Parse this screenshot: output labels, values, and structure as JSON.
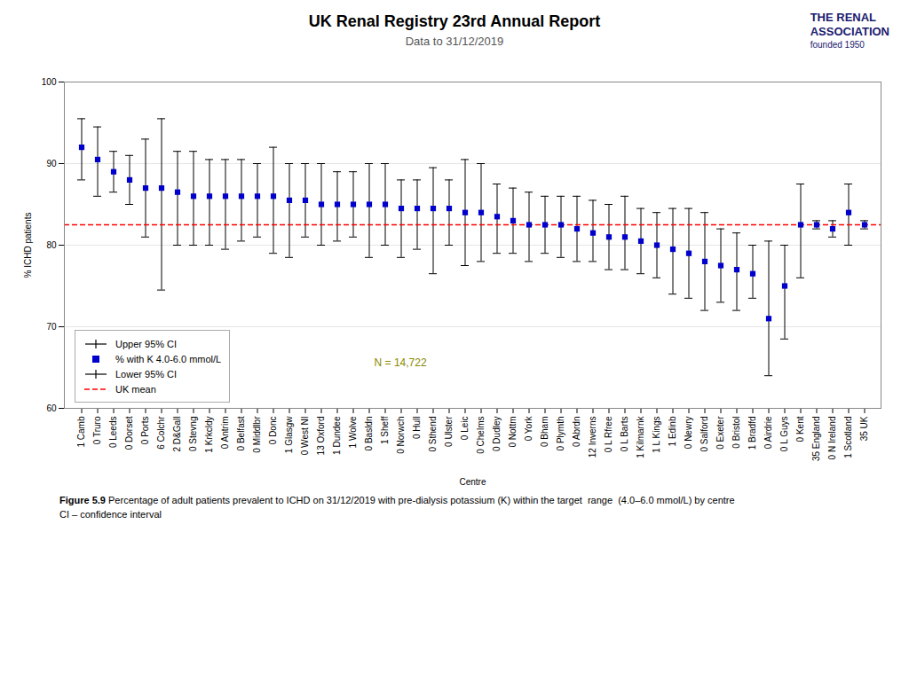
{
  "chart_data": {
    "type": "scatter",
    "title": "UK Renal Registry 23rd Annual Report",
    "subtitle": "Data to 31/12/2019",
    "ylabel": "% ICHD patients",
    "xlabel": "Centre",
    "categories": [
      "1 Camb",
      "0 Truro",
      "0 Leeds",
      "0 Dorset",
      "0 Ports",
      "6 Colchr",
      "2 D&Gall",
      "0 Stevng",
      "1 Krkcldy",
      "0 Antrim",
      "0 Belfast",
      "0 Middlbr",
      "0 Donc",
      "1 Glasgw",
      "0 West NI",
      "13 Oxford",
      "1 Dundee",
      "1 Wolve",
      "0 Basldn",
      "1 Sheff",
      "0 Norwch",
      "0 Hull",
      "0 Sthend",
      "0 Ulster",
      "0 Leic",
      "0 Chelms",
      "0 Dudley",
      "0 Nottm",
      "0 York",
      "0 Bham",
      "0 Plymth",
      "0 Abrdn",
      "12 Inverns",
      "0 L Rfree",
      "0 L Barts",
      "1 Kilmarnk",
      "1 L Kings",
      "1 Edinb",
      "0 Newry",
      "0 Salford",
      "0 Exeter",
      "0 Bristol",
      "1 Bradfd",
      "0 Airdrie",
      "0 L Guys",
      "0 Kent",
      "35 England",
      "0 N Ireland",
      "1 Scotland",
      "35 UK"
    ],
    "series": [
      {
        "name": "Upper 95% CI",
        "color": "black",
        "marker": "tick",
        "values": [
          95.5,
          94.5,
          91.5,
          91.0,
          93.0,
          95.5,
          91.5,
          91.5,
          90.5,
          90.5,
          90.5,
          90.0,
          92.0,
          90.0,
          90.0,
          90.0,
          89.0,
          89.0,
          90.0,
          90.0,
          88.0,
          88.0,
          89.5,
          88.0,
          90.5,
          90.0,
          87.5,
          87.0,
          86.5,
          86.0,
          86.0,
          86.0,
          85.5,
          85.0,
          86.0,
          84.5,
          84.0,
          84.5,
          84.5,
          84.0,
          82.0,
          81.5,
          80.0,
          80.5,
          80.0,
          87.5,
          83.0,
          83.0,
          87.5,
          83.0
        ]
      },
      {
        "name": "% with K 4.0-6.0 mmol/L",
        "color": "#0000cc",
        "marker": "square",
        "values": [
          92.0,
          90.5,
          89.0,
          88.0,
          87.0,
          87.0,
          86.5,
          86.0,
          86.0,
          86.0,
          86.0,
          86.0,
          86.0,
          85.5,
          85.5,
          85.0,
          85.0,
          85.0,
          85.0,
          85.0,
          84.5,
          84.5,
          84.5,
          84.5,
          84.0,
          84.0,
          83.5,
          83.0,
          82.5,
          82.5,
          82.5,
          82.0,
          81.5,
          81.0,
          81.0,
          80.5,
          80.0,
          79.5,
          79.0,
          78.0,
          77.5,
          77.0,
          76.5,
          71.0,
          75.0,
          82.5,
          82.5,
          82.0,
          84.0,
          82.5
        ]
      },
      {
        "name": "Lower 95% CI",
        "color": "black",
        "marker": "tick",
        "values": [
          88.0,
          86.0,
          86.5,
          85.0,
          81.0,
          74.5,
          80.0,
          80.0,
          80.0,
          79.5,
          80.5,
          81.0,
          79.0,
          78.5,
          81.0,
          80.0,
          80.5,
          81.0,
          78.5,
          80.0,
          78.5,
          79.5,
          76.5,
          80.0,
          77.5,
          78.0,
          79.0,
          79.0,
          78.0,
          79.0,
          78.5,
          78.0,
          78.0,
          77.0,
          77.0,
          76.5,
          76.0,
          74.0,
          73.5,
          72.0,
          73.0,
          72.0,
          73.5,
          64.0,
          68.5,
          76.0,
          82.0,
          81.0,
          80.0,
          82.0
        ]
      }
    ],
    "reference_line": {
      "name": "UK mean",
      "value": 82.5,
      "color": "red",
      "line_style": "dashed"
    },
    "ylim": [
      60,
      100
    ],
    "yticks": [
      60,
      70,
      80,
      90,
      100
    ],
    "grid": true,
    "legend": "lower left",
    "annotations": [
      "N = 14,722"
    ],
    "caption_bold": "Figure 5.9",
    "caption": " Percentage of adult patients prevalent to ICHD on 31/12/2019 with pre-dialysis potassium (K) within the target  range  (4.0–6.0 mmol/L) by centre",
    "footnote": "CI – confidence interval",
    "logo": [
      "THE RENAL",
      "ASSOCIATION",
      "founded 1950"
    ]
  }
}
